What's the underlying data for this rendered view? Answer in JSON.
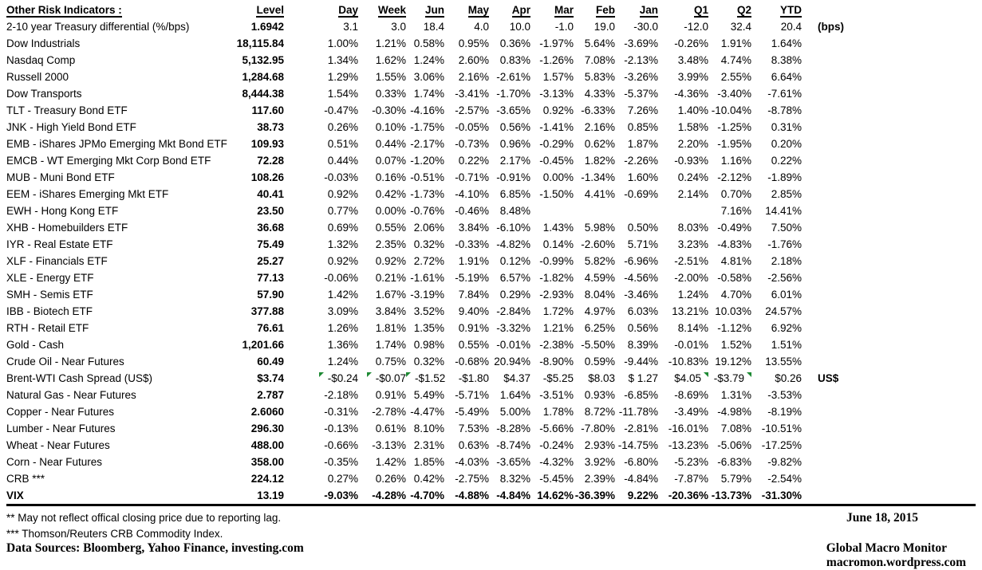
{
  "header": {
    "title": "Other Risk Indicators :",
    "columns": [
      "Level",
      "Day",
      "Week",
      "Jun",
      "May",
      "Apr",
      "Mar",
      "Feb",
      "Jan",
      "Q1",
      "Q2",
      "YTD"
    ]
  },
  "table": {
    "rows": [
      {
        "label": "2-10 year Treasury differential (%/bps)",
        "values": [
          "1.6942",
          "3.1",
          "3.0",
          "18.4",
          "4.0",
          "10.0",
          "-1.0",
          "19.0",
          "-30.0",
          "-12.0",
          "32.4",
          "20.4"
        ],
        "note": "(bps)"
      },
      {
        "label": "Dow Industrials",
        "values": [
          "18,115.84",
          "1.00%",
          "1.21%",
          "0.58%",
          "0.95%",
          "0.36%",
          "-1.97%",
          "5.64%",
          "-3.69%",
          "-0.26%",
          "1.91%",
          "1.64%"
        ]
      },
      {
        "label": "Nasdaq Comp",
        "values": [
          "5,132.95",
          "1.34%",
          "1.62%",
          "1.24%",
          "2.60%",
          "0.83%",
          "-1.26%",
          "7.08%",
          "-2.13%",
          "3.48%",
          "4.74%",
          "8.38%"
        ]
      },
      {
        "label": "Russell 2000",
        "values": [
          "1,284.68",
          "1.29%",
          "1.55%",
          "3.06%",
          "2.16%",
          "-2.61%",
          "1.57%",
          "5.83%",
          "-3.26%",
          "3.99%",
          "2.55%",
          "6.64%"
        ]
      },
      {
        "label": "Dow Transports",
        "values": [
          "8,444.38",
          "1.54%",
          "0.33%",
          "1.74%",
          "-3.41%",
          "-1.70%",
          "-3.13%",
          "4.33%",
          "-5.37%",
          "-4.36%",
          "-3.40%",
          "-7.61%"
        ]
      },
      {
        "label": "TLT - Treasury Bond ETF",
        "values": [
          "117.60",
          "-0.47%",
          "-0.30%",
          "-4.16%",
          "-2.57%",
          "-3.65%",
          "0.92%",
          "-6.33%",
          "7.26%",
          "1.40%",
          "-10.04%",
          "-8.78%"
        ]
      },
      {
        "label": "JNK - High Yield Bond ETF",
        "values": [
          "38.73",
          "0.26%",
          "0.10%",
          "-1.75%",
          "-0.05%",
          "0.56%",
          "-1.41%",
          "2.16%",
          "0.85%",
          "1.58%",
          "-1.25%",
          "0.31%"
        ]
      },
      {
        "label": "EMB - iShares JPMo Emerging Mkt Bond ETF",
        "values": [
          "109.93",
          "0.51%",
          "0.44%",
          "-2.17%",
          "-0.73%",
          "0.96%",
          "-0.29%",
          "0.62%",
          "1.87%",
          "2.20%",
          "-1.95%",
          "0.20%"
        ]
      },
      {
        "label": "EMCB - WT Emerging Mkt Corp Bond ETF",
        "values": [
          "72.28",
          "0.44%",
          "0.07%",
          "-1.20%",
          "0.22%",
          "2.17%",
          "-0.45%",
          "1.82%",
          "-2.26%",
          "-0.93%",
          "1.16%",
          "0.22%"
        ]
      },
      {
        "label": "MUB - Muni Bond ETF",
        "values": [
          "108.26",
          "-0.03%",
          "0.16%",
          "-0.51%",
          "-0.71%",
          "-0.91%",
          "0.00%",
          "-1.34%",
          "1.60%",
          "0.24%",
          "-2.12%",
          "-1.89%"
        ]
      },
      {
        "label": "EEM - iShares Emerging Mkt ETF",
        "values": [
          "40.41",
          "0.92%",
          "0.42%",
          "-1.73%",
          "-4.10%",
          "6.85%",
          "-1.50%",
          "4.41%",
          "-0.69%",
          "2.14%",
          "0.70%",
          "2.85%"
        ]
      },
      {
        "label": "EWH - Hong Kong ETF",
        "values": [
          "23.50",
          "0.77%",
          "0.00%",
          "-0.76%",
          "-0.46%",
          "8.48%",
          "",
          "",
          "",
          "",
          "7.16%",
          "14.41%"
        ]
      },
      {
        "label": "XHB - Homebuilders ETF",
        "values": [
          "36.68",
          "0.69%",
          "0.55%",
          "2.06%",
          "3.84%",
          "-6.10%",
          "1.43%",
          "5.98%",
          "0.50%",
          "8.03%",
          "-0.49%",
          "7.50%"
        ]
      },
      {
        "label": "IYR - Real Estate ETF",
        "values": [
          "75.49",
          "1.32%",
          "2.35%",
          "0.32%",
          "-0.33%",
          "-4.82%",
          "0.14%",
          "-2.60%",
          "5.71%",
          "3.23%",
          "-4.83%",
          "-1.76%"
        ]
      },
      {
        "label": "XLF - Financials ETF",
        "values": [
          "25.27",
          "0.92%",
          "0.92%",
          "2.72%",
          "1.91%",
          "0.12%",
          "-0.99%",
          "5.82%",
          "-6.96%",
          "-2.51%",
          "4.81%",
          "2.18%"
        ]
      },
      {
        "label": "XLE - Energy ETF",
        "values": [
          "77.13",
          "-0.06%",
          "0.21%",
          "-1.61%",
          "-5.19%",
          "6.57%",
          "-1.82%",
          "4.59%",
          "-4.56%",
          "-2.00%",
          "-0.58%",
          "-2.56%"
        ]
      },
      {
        "label": "SMH - Semis ETF",
        "values": [
          "57.90",
          "1.42%",
          "1.67%",
          "-3.19%",
          "7.84%",
          "0.29%",
          "-2.93%",
          "8.04%",
          "-3.46%",
          "1.24%",
          "4.70%",
          "6.01%"
        ]
      },
      {
        "label": "IBB - Biotech ETF",
        "values": [
          "377.88",
          "3.09%",
          "3.84%",
          "3.52%",
          "9.40%",
          "-2.84%",
          "1.72%",
          "4.97%",
          "6.03%",
          "13.21%",
          "10.03%",
          "24.57%"
        ]
      },
      {
        "label": "RTH - Retail ETF",
        "values": [
          "76.61",
          "1.26%",
          "1.81%",
          "1.35%",
          "0.91%",
          "-3.32%",
          "1.21%",
          "6.25%",
          "0.56%",
          "8.14%",
          "-1.12%",
          "6.92%"
        ]
      },
      {
        "label": "Gold - Cash",
        "values": [
          "1,201.66",
          "1.36%",
          "1.74%",
          "0.98%",
          "0.55%",
          "-0.01%",
          "-2.38%",
          "-5.50%",
          "8.39%",
          "-0.01%",
          "1.52%",
          "1.51%"
        ]
      },
      {
        "label": "Crude Oil - Near Futures",
        "values": [
          "60.49",
          "1.24%",
          "0.75%",
          "0.32%",
          "-0.68%",
          "20.94%",
          "-8.90%",
          "0.59%",
          "-9.44%",
          "-10.83%",
          "19.12%",
          "13.55%"
        ]
      },
      {
        "label": "Brent-WTI Cash Spread (US$)",
        "values": [
          "$3.74",
          "-$0.24",
          "-$0.07",
          "-$1.52",
          "-$1.80",
          "$4.37",
          "-$5.25",
          "$8.03",
          "$ 1.27",
          "$4.05",
          "-$3.79",
          "$0.26"
        ],
        "note": "US$",
        "markers": {
          "1": "left",
          "2": "left",
          "3": "left",
          "9": "right",
          "10": "right"
        }
      },
      {
        "label": "Natural Gas - Near Futures",
        "values": [
          "2.787",
          "-2.18%",
          "0.91%",
          "5.49%",
          "-5.71%",
          "1.64%",
          "-3.51%",
          "0.93%",
          "-6.85%",
          "-8.69%",
          "1.31%",
          "-3.53%"
        ]
      },
      {
        "label": "Copper - Near Futures",
        "values": [
          "2.6060",
          "-0.31%",
          "-2.78%",
          "-4.47%",
          "-5.49%",
          "5.00%",
          "1.78%",
          "8.72%",
          "-11.78%",
          "-3.49%",
          "-4.98%",
          "-8.19%"
        ]
      },
      {
        "label": "Lumber - Near Futures",
        "values": [
          "296.30",
          "-0.13%",
          "0.61%",
          "8.10%",
          "7.53%",
          "-8.28%",
          "-5.66%",
          "-7.80%",
          "-2.81%",
          "-16.01%",
          "7.08%",
          "-10.51%"
        ]
      },
      {
        "label": "Wheat - Near Futures",
        "values": [
          "488.00",
          "-0.66%",
          "-3.13%",
          "2.31%",
          "0.63%",
          "-8.74%",
          "-0.24%",
          "2.93%",
          "-14.75%",
          "-13.23%",
          "-5.06%",
          "-17.25%"
        ]
      },
      {
        "label": "Corn - Near Futures",
        "values": [
          "358.00",
          "-0.35%",
          "1.42%",
          "1.85%",
          "-4.03%",
          "-3.65%",
          "-4.32%",
          "3.92%",
          "-6.80%",
          "-5.23%",
          "-6.83%",
          "-9.82%"
        ]
      },
      {
        "label": "CRB ***",
        "values": [
          "224.12",
          "0.27%",
          "0.26%",
          "0.42%",
          "-2.75%",
          "8.32%",
          "-5.45%",
          "2.39%",
          "-4.84%",
          "-7.87%",
          "5.79%",
          "-2.54%"
        ]
      },
      {
        "label": "VIX",
        "values": [
          "13.19",
          "-9.03%",
          "-4.28%",
          "-4.70%",
          "-4.88%",
          "-4.84%",
          "14.62%",
          "-36.39%",
          "9.22%",
          "-20.36%",
          "-13.73%",
          "-31.30%"
        ],
        "bold": true
      }
    ]
  },
  "footer": {
    "footnote_2star": "**  May not reflect offical closing price due to reporting lag.",
    "footnote_3star": "*** Thomson/Reuters CRB Commodity Index.",
    "data_sources": "Data Sources:  Bloomberg,  Yahoo Finance, investing.com",
    "date": "June 18, 2015",
    "brand": "Global Macro Monitor",
    "url": "macromon.wordpress.com"
  },
  "colors": {
    "text": "#000000",
    "comment_marker_green": "#1e8a34",
    "divider_black": "#000000"
  }
}
